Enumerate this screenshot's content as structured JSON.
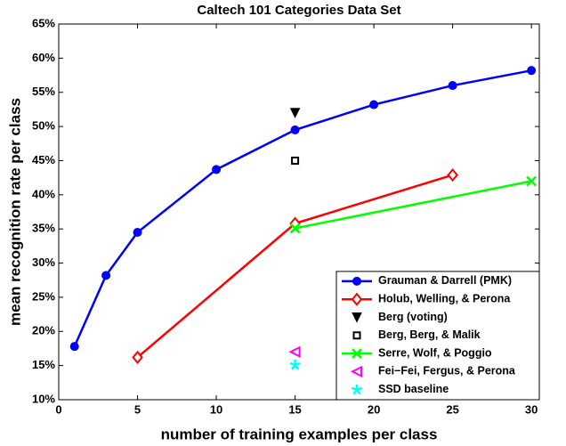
{
  "chart_data": {
    "type": "line",
    "title": "Caltech 101 Categories Data Set",
    "x_label": "number of training examples per class",
    "y_label": "mean recognition rate per class",
    "xlim": [
      0,
      30.5
    ],
    "xticks": [
      0,
      5,
      10,
      15,
      20,
      25,
      30
    ],
    "ylim": [
      10,
      65
    ],
    "yticks": [
      {
        "value": 10,
        "label": "10%"
      },
      {
        "value": 15,
        "label": "15%"
      },
      {
        "value": 20,
        "label": "20%"
      },
      {
        "value": 25,
        "label": "25%"
      },
      {
        "value": 30,
        "label": "30%"
      },
      {
        "value": 35,
        "label": "35%"
      },
      {
        "value": 40,
        "label": "40%"
      },
      {
        "value": 45,
        "label": "45%"
      },
      {
        "value": 50,
        "label": "50%"
      },
      {
        "value": 55,
        "label": "55%"
      },
      {
        "value": 60,
        "label": "60%"
      },
      {
        "value": 65,
        "label": "65%"
      }
    ],
    "grid": false,
    "legend": "lower right",
    "series": [
      {
        "name": "Grauman & Darrell (PMK)",
        "color": "#0000ff",
        "marker": "circle",
        "x": [
          1,
          3,
          5,
          10,
          15,
          20,
          25,
          30
        ],
        "values": [
          17.8,
          28.2,
          34.5,
          43.7,
          49.5,
          53.2,
          56,
          58.2
        ]
      },
      {
        "name": "Holub, Welling, & Perona",
        "color": "#ff0000",
        "marker": "diamond",
        "x": [
          5,
          15,
          25
        ],
        "values": [
          16.2,
          35.8,
          42.9
        ]
      },
      {
        "name": "Berg (voting)",
        "color": "#000000",
        "marker": "triangle-down",
        "x": [
          15
        ],
        "values": [
          52
        ]
      },
      {
        "name": "Berg, Berg, & Malik",
        "color": "#000000",
        "marker": "square",
        "x": [
          15
        ],
        "values": [
          45
        ]
      },
      {
        "name": "Serre, Wolf, & Poggio",
        "color": "#00ff00",
        "marker": "x",
        "x": [
          15,
          30
        ],
        "values": [
          35.1,
          42
        ]
      },
      {
        "name": "Fei−Fei, Fergus, & Perona",
        "color": "#ff00ff",
        "marker": "triangle-left",
        "x": [
          15
        ],
        "values": [
          17
        ]
      },
      {
        "name": "SSD baseline",
        "color": "#00ffff",
        "marker": "star",
        "x": [
          15
        ],
        "values": [
          15.1
        ]
      }
    ]
  }
}
